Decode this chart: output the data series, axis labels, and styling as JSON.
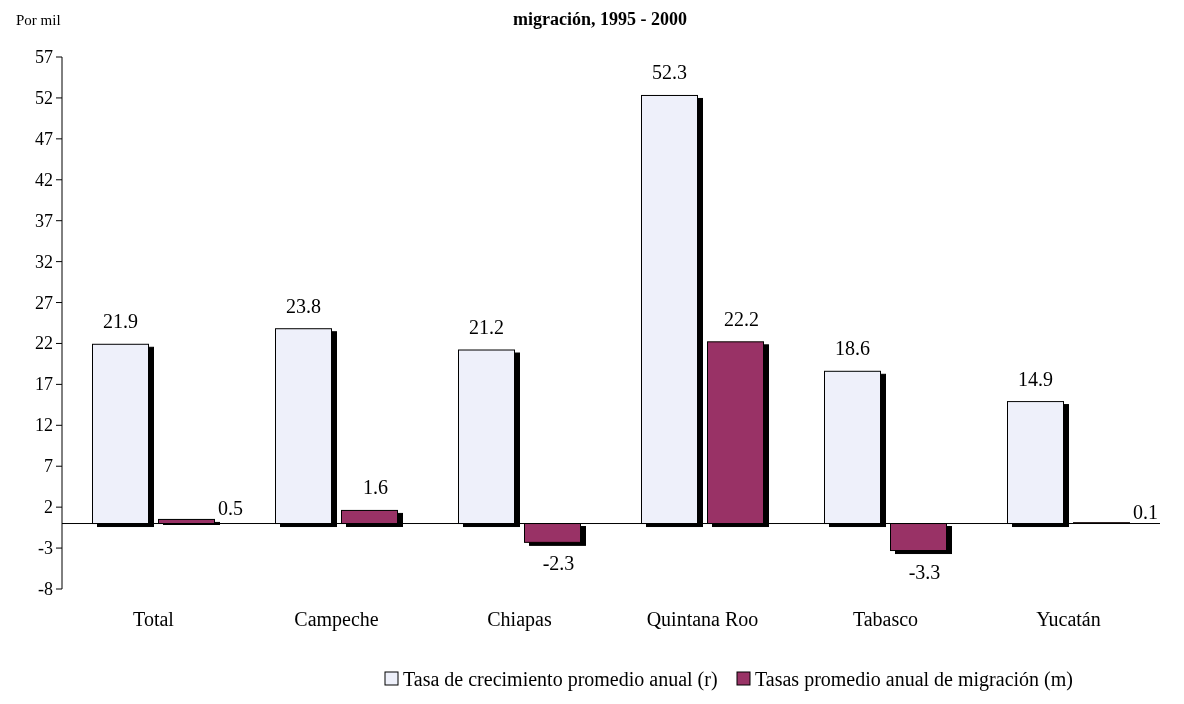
{
  "chart_data": {
    "type": "bar",
    "title": "migración, 1995 - 2000",
    "ylabel": "Por mil",
    "categories": [
      "Total",
      "Campeche",
      "Chiapas",
      "Quintana Roo",
      "Tabasco",
      "Yucatán"
    ],
    "series": [
      {
        "name": "Tasa de crecimiento promedio anual (r)",
        "color": "#eef0fa",
        "values": [
          21.9,
          23.8,
          21.2,
          52.3,
          18.6,
          14.9
        ]
      },
      {
        "name": "Tasas promedio anual de migración (m)",
        "color": "#993366",
        "values": [
          0.5,
          1.6,
          -2.3,
          22.2,
          -3.3,
          0.1
        ]
      }
    ],
    "ylim": [
      -8,
      57
    ],
    "yticks": [
      -8,
      -3,
      2,
      7,
      12,
      17,
      22,
      27,
      32,
      37,
      42,
      47,
      52,
      57
    ],
    "data_labels": true,
    "legend": "bottom",
    "grid": false
  }
}
